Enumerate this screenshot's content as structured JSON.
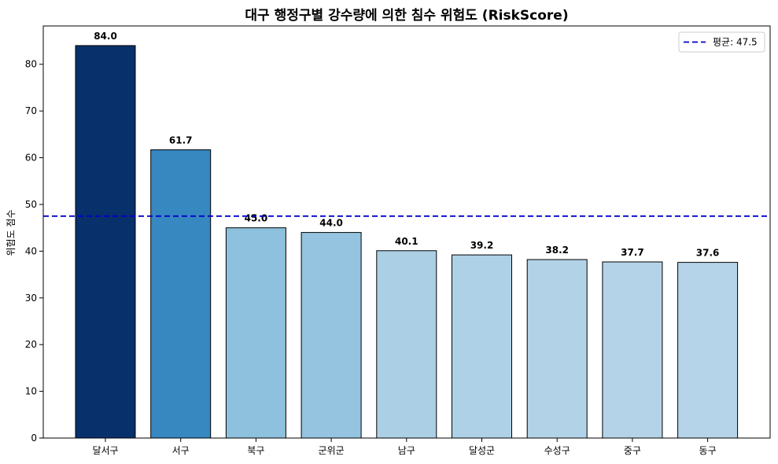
{
  "chart_data": {
    "type": "bar",
    "title": "대구 행정구별 강수량에 의한 침수 위험도 (RiskScore)",
    "xlabel": "",
    "ylabel": "위험도 점수",
    "categories": [
      "달서구",
      "서구",
      "북구",
      "군위군",
      "남구",
      "달성군",
      "수성구",
      "중구",
      "동구"
    ],
    "values": [
      84.0,
      61.7,
      45.0,
      44.0,
      40.1,
      39.2,
      38.2,
      37.7,
      37.6
    ],
    "value_labels": [
      "84.0",
      "61.7",
      "45.0",
      "44.0",
      "40.1",
      "39.2",
      "38.2",
      "37.7",
      "37.6"
    ],
    "bar_colors": [
      "#08306b",
      "#3787c0",
      "#8dc1dd",
      "#94c4df",
      "#abcfe5",
      "#afd1e7",
      "#b2d2e8",
      "#b4d3e9",
      "#b5d4e9"
    ],
    "ylim": [
      0,
      88.2
    ],
    "yticks": [
      0,
      10,
      20,
      30,
      40,
      50,
      60,
      70,
      80
    ],
    "ytick_labels": [
      "0",
      "10",
      "20",
      "30",
      "40",
      "50",
      "60",
      "70",
      "80"
    ],
    "mean_line": {
      "value": 47.5,
      "label": "평균: 47.5",
      "color": "#0000cc",
      "style": "dashed"
    },
    "legend": {
      "placement": "top-right"
    },
    "grid": false
  }
}
